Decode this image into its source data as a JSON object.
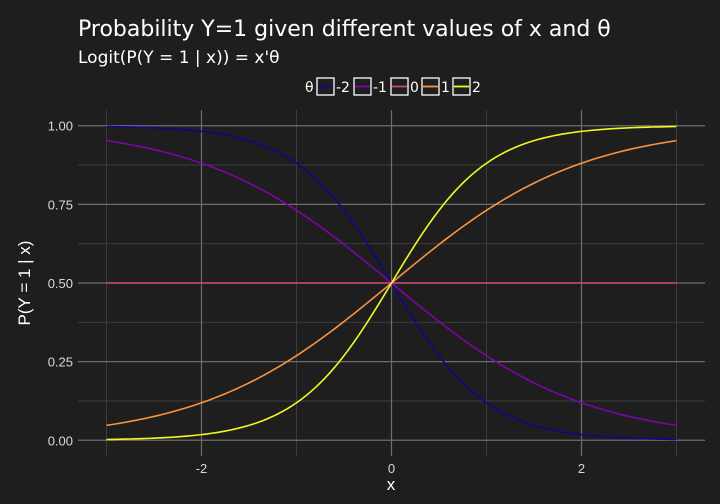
{
  "chart_data": {
    "type": "line",
    "title": "Probability Y=1 given different values of x and θ",
    "subtitle": "Logit(P(Y = 1 | x)) = x'θ",
    "xlabel": "x",
    "ylabel": "P(Y = 1 | x)",
    "xlim": [
      -3.3,
      3.3
    ],
    "ylim": [
      -0.05,
      1.05
    ],
    "x_ticks": [
      -2,
      0,
      2
    ],
    "x_tick_labels": [
      "-2",
      "0",
      "2"
    ],
    "y_ticks": [
      0,
      0.25,
      0.5,
      0.75,
      1
    ],
    "y_tick_labels": [
      "0.00",
      "0.25",
      "0.50",
      "0.75",
      "1.00"
    ],
    "x_range": [
      -3,
      3
    ],
    "grid": true,
    "legend": {
      "title": "θ",
      "placement": "top"
    },
    "series": [
      {
        "name": "-2",
        "theta": -2,
        "color": "#0d0887",
        "x": [
          -3,
          -2.5,
          -2,
          -1.5,
          -1,
          -0.5,
          0,
          0.5,
          1,
          1.5,
          2,
          2.5,
          3
        ],
        "values": [
          0.998,
          0.993,
          0.982,
          0.953,
          0.881,
          0.731,
          0.5,
          0.269,
          0.119,
          0.047,
          0.018,
          0.007,
          0.002
        ]
      },
      {
        "name": "-1",
        "theta": -1,
        "color": "#7e03a8",
        "x": [
          -3,
          -2.5,
          -2,
          -1.5,
          -1,
          -0.5,
          0,
          0.5,
          1,
          1.5,
          2,
          2.5,
          3
        ],
        "values": [
          0.953,
          0.924,
          0.881,
          0.818,
          0.731,
          0.622,
          0.5,
          0.378,
          0.269,
          0.182,
          0.119,
          0.076,
          0.047
        ]
      },
      {
        "name": "0",
        "theta": 0,
        "color": "#cc4778",
        "x": [
          -3,
          -2.5,
          -2,
          -1.5,
          -1,
          -0.5,
          0,
          0.5,
          1,
          1.5,
          2,
          2.5,
          3
        ],
        "values": [
          0.5,
          0.5,
          0.5,
          0.5,
          0.5,
          0.5,
          0.5,
          0.5,
          0.5,
          0.5,
          0.5,
          0.5,
          0.5
        ]
      },
      {
        "name": "1",
        "theta": 1,
        "color": "#f89540",
        "x": [
          -3,
          -2.5,
          -2,
          -1.5,
          -1,
          -0.5,
          0,
          0.5,
          1,
          1.5,
          2,
          2.5,
          3
        ],
        "values": [
          0.047,
          0.076,
          0.119,
          0.182,
          0.269,
          0.378,
          0.5,
          0.622,
          0.731,
          0.818,
          0.881,
          0.924,
          0.953
        ]
      },
      {
        "name": "2",
        "theta": 2,
        "color": "#f0f921",
        "x": [
          -3,
          -2.5,
          -2,
          -1.5,
          -1,
          -0.5,
          0,
          0.5,
          1,
          1.5,
          2,
          2.5,
          3
        ],
        "values": [
          0.002,
          0.007,
          0.018,
          0.047,
          0.119,
          0.269,
          0.5,
          0.731,
          0.881,
          0.953,
          0.982,
          0.993,
          0.998
        ]
      }
    ]
  },
  "colors": {
    "background": "#1e1e1e",
    "grid_major": "#6e6e6e",
    "grid_minor": "#3c3c3c"
  }
}
